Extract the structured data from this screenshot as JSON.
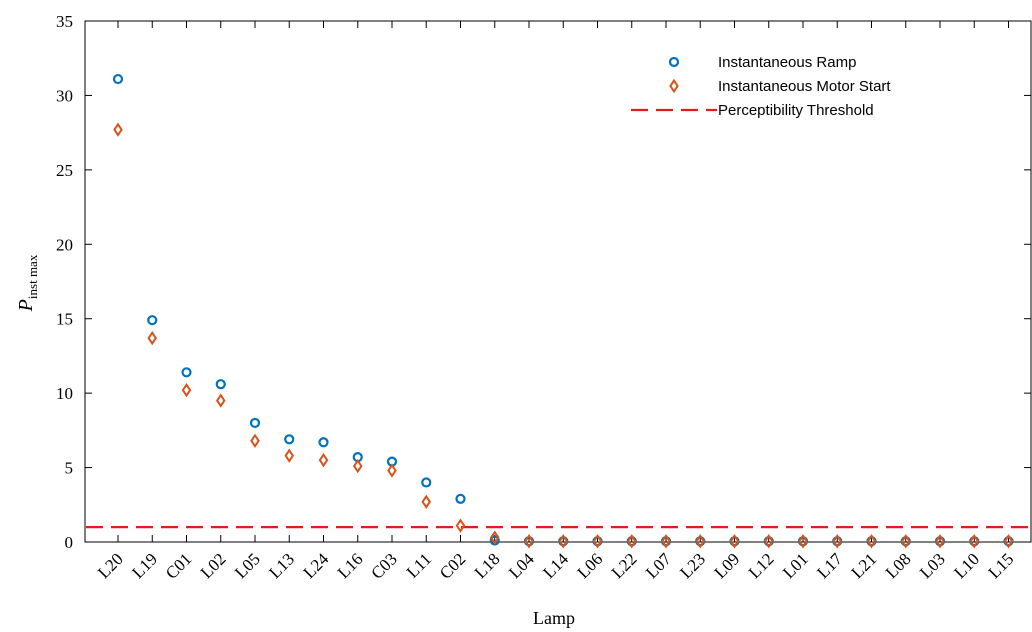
{
  "chart_data": {
    "type": "scatter",
    "title": "",
    "xlabel": "Lamp",
    "ylabel": {
      "main": "P",
      "sub": "inst max"
    },
    "ylim": [
      0,
      35
    ],
    "yticks": [
      0,
      5,
      10,
      15,
      20,
      25,
      30,
      35
    ],
    "grid": false,
    "legend_position": "top-right",
    "categories": [
      "L20",
      "L19",
      "C01",
      "L02",
      "L05",
      "L13",
      "L24",
      "L16",
      "C03",
      "L11",
      "C02",
      "L18",
      "L04",
      "L14",
      "L06",
      "L22",
      "L07",
      "L23",
      "L09",
      "L12",
      "L01",
      "L17",
      "L21",
      "L08",
      "L03",
      "L10",
      "L15"
    ],
    "series": [
      {
        "name": "Instantaneous Ramp",
        "marker": "circle",
        "color": "#0072BD",
        "values": [
          31.1,
          14.9,
          11.4,
          10.6,
          8.0,
          6.9,
          6.7,
          5.7,
          5.4,
          4.0,
          2.9,
          0.1,
          0.05,
          0.05,
          0.05,
          0.05,
          0.05,
          0.05,
          0.05,
          0.05,
          0.05,
          0.05,
          0.05,
          0.05,
          0.05,
          0.05,
          0.05
        ]
      },
      {
        "name": "Instantaneous Motor Start",
        "marker": "diamond",
        "color": "#D95319",
        "values": [
          27.7,
          13.7,
          10.2,
          9.5,
          6.8,
          5.8,
          5.5,
          5.1,
          4.8,
          2.7,
          1.1,
          0.3,
          0.05,
          0.05,
          0.05,
          0.05,
          0.05,
          0.05,
          0.05,
          0.05,
          0.05,
          0.05,
          0.05,
          0.05,
          0.05,
          0.05,
          0.05
        ]
      }
    ],
    "reference_lines": [
      {
        "name": "Perceptibility Threshold",
        "y": 1,
        "style": "dashed",
        "color": "#E41A1C"
      }
    ]
  }
}
